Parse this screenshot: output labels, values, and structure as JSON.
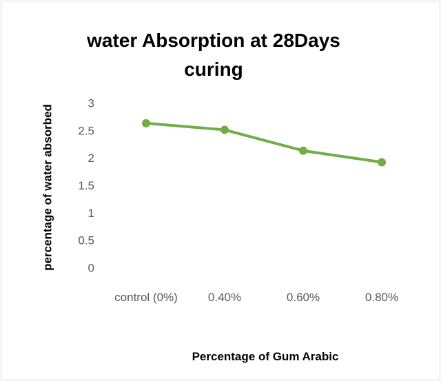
{
  "chart_data": {
    "type": "line",
    "title": "water Absorption at 28Days curing",
    "x_label": "Percentage of Gum Arabic",
    "y_label": "percentage of water absorbed",
    "categories": [
      "control (0%)",
      "0.40%",
      "0.60%",
      "0.80%"
    ],
    "series": [
      {
        "name": "water absorption",
        "color": "#70ad47",
        "values": [
          2.65,
          2.53,
          2.15,
          1.94
        ]
      }
    ],
    "ylim": [
      0,
      3
    ],
    "yticks": [
      0,
      0.5,
      1,
      1.5,
      2,
      2.5,
      3
    ],
    "grid": false
  }
}
